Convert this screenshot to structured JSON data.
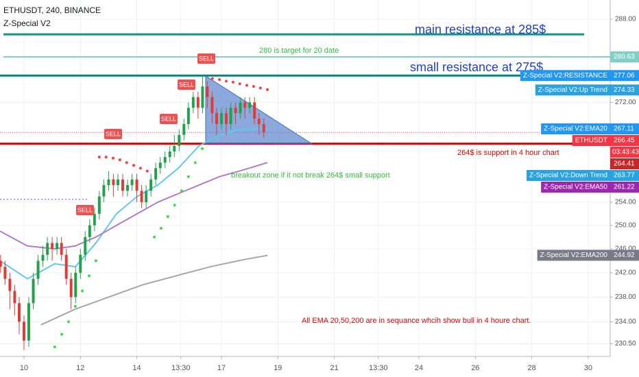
{
  "chart_data": {
    "type": "candlestick",
    "header": [
      "ETHUSDT, 240, BINANCE",
      "Z-Special V2"
    ],
    "log_scale": true,
    "grid": true,
    "xlim": [
      9.15,
      30.78
    ],
    "ylim": [
      228.5,
      291.8
    ],
    "xticks": [
      10,
      12,
      14,
      {
        "value": 15.56,
        "label": "13:30"
      },
      17,
      19,
      21,
      {
        "value": 22.56,
        "label": "13:30"
      },
      24,
      26,
      28,
      30
    ],
    "yticks": [
      {
        "value": 288,
        "label": "288.00"
      },
      {
        "value": 272,
        "label": "272.00"
      },
      {
        "value": 254,
        "label": "254.00"
      },
      {
        "value": 250,
        "label": "250.00"
      },
      {
        "value": 246,
        "label": "246.00"
      },
      {
        "value": 242,
        "label": "242.00"
      },
      {
        "value": 238,
        "label": "238.00"
      },
      {
        "value": 234,
        "label": "234.00"
      },
      {
        "value": 230.5,
        "label": "230.50"
      }
    ],
    "up_color": "#1fa34a",
    "down_color": "#e53935",
    "candles": {
      "x": [
        9.17,
        9.33,
        9.5,
        9.67,
        9.83,
        10,
        10.17,
        10.33,
        10.5,
        10.67,
        10.83,
        11,
        11.17,
        11.33,
        11.5,
        11.67,
        11.83,
        12,
        12.17,
        12.33,
        12.5,
        12.67,
        12.83,
        13,
        13.17,
        13.33,
        13.5,
        13.67,
        13.83,
        14,
        14.17,
        14.33,
        14.5,
        14.67,
        14.83,
        15,
        15.17,
        15.33,
        15.5,
        15.67,
        15.83,
        16,
        16.17,
        16.33,
        16.5,
        16.67,
        16.83,
        17,
        17.17,
        17.33,
        17.5,
        17.67,
        17.83,
        18,
        18.17,
        18.33,
        18.5
      ],
      "open": [
        244,
        243,
        241,
        239,
        237,
        234,
        231,
        237,
        241,
        244,
        245,
        247,
        246,
        247,
        245,
        241,
        238,
        242,
        245,
        248,
        250,
        252,
        255,
        257,
        258,
        257,
        258,
        256,
        257,
        258,
        256,
        254,
        256,
        258,
        260,
        261,
        262,
        263,
        264,
        266,
        268,
        271,
        273,
        271,
        275,
        273,
        270,
        268,
        270,
        268,
        271,
        270,
        272,
        271,
        272,
        269,
        268
      ],
      "high": [
        245,
        244,
        242,
        240,
        238,
        235,
        238,
        242,
        245,
        246.5,
        248,
        248,
        248,
        248,
        246,
        242,
        243,
        246,
        249,
        251,
        253,
        256,
        258,
        259.5,
        259,
        259,
        259,
        258,
        259,
        259,
        257,
        257,
        259,
        261,
        262,
        263,
        264,
        266,
        267,
        269,
        272,
        274,
        274,
        277,
        276,
        274,
        271,
        271,
        271,
        272,
        272,
        273,
        273,
        273,
        273,
        270,
        269
      ],
      "low": [
        242,
        240,
        236,
        235,
        232,
        229.5,
        230,
        236,
        240,
        243,
        244,
        244,
        245,
        244,
        240,
        236,
        237,
        241,
        244,
        247,
        249,
        251,
        254,
        256,
        255,
        256,
        255,
        255,
        256,
        254,
        253,
        253,
        255,
        257,
        259,
        260,
        261,
        262,
        263,
        265,
        267,
        270,
        269,
        270,
        271,
        268,
        266,
        267,
        266,
        267,
        268,
        269,
        269,
        270,
        268,
        266,
        265.5
      ],
      "close": [
        243,
        241,
        239,
        237,
        234,
        231,
        237,
        241,
        244,
        245,
        247,
        246,
        247,
        245,
        241,
        238,
        242,
        245,
        248,
        250,
        252,
        255,
        257,
        258,
        257,
        258,
        256,
        257,
        258,
        256,
        254,
        256,
        258,
        260,
        261,
        262,
        263,
        264,
        266,
        268,
        271,
        273,
        271,
        275,
        273,
        270,
        268,
        270,
        268,
        271,
        270,
        272,
        271,
        272,
        269,
        268,
        266.5
      ]
    },
    "ema": [
      {
        "color": "#5ec8f0",
        "x": [
          9.15,
          10.12,
          11.09,
          11.82,
          12.55,
          13.28,
          14.01,
          14.74,
          15.47,
          16.2,
          16.93,
          17.65,
          18.63
        ],
        "values": [
          244,
          241,
          243.5,
          243,
          247,
          252,
          255,
          257,
          260,
          264,
          266,
          267,
          267.1
        ]
      },
      {
        "color": "#b07cc6",
        "x": [
          9.15,
          10.12,
          11.09,
          11.82,
          12.55,
          13.28,
          14.01,
          14.74,
          15.47,
          16.2,
          16.93,
          17.65,
          18.63
        ],
        "values": [
          249,
          246.5,
          246,
          246.5,
          248,
          250,
          252,
          254,
          255.5,
          257,
          258.5,
          259.5,
          261
        ]
      },
      {
        "color": "#a8a3b3",
        "x": [
          10.6,
          11.8,
          13,
          14.2,
          15.4,
          16.6,
          17.8,
          18.63
        ],
        "values": [
          233.5,
          236,
          238,
          240,
          241.5,
          243,
          244.2,
          244.9
        ]
      }
    ],
    "sar": [
      {
        "color": "#3ddc44",
        "x": [
          11.09,
          11.34,
          11.58,
          11.82,
          12.07,
          12.31,
          12.55,
          14.62,
          14.86,
          15.1,
          15.34,
          15.59,
          15.83,
          16.07,
          16.32
        ],
        "values": [
          230,
          232,
          234,
          236.5,
          239,
          241.5,
          244,
          248,
          249.5,
          251.5,
          253.5,
          256,
          258.5,
          261,
          263.5
        ]
      },
      {
        "color": "#ff3b3b",
        "x": [
          12.67,
          12.91,
          13.16,
          13.4,
          13.64,
          13.89,
          14.13,
          14.37,
          16.68,
          16.93,
          17.17,
          17.41,
          17.65,
          17.9,
          18.14,
          18.38,
          18.63
        ],
        "values": [
          262,
          262,
          261.8,
          261.5,
          261,
          260.5,
          260,
          259.5,
          276.5,
          276.3,
          276,
          275.8,
          275.5,
          275.2,
          275,
          274.7,
          274.4
        ]
      }
    ],
    "levels": [
      {
        "value": 285,
        "color": "#089981"
      },
      {
        "value": 280.63,
        "color": "#80d0c8"
      },
      {
        "value": 277.06,
        "color": "#00897b"
      },
      {
        "value": 264.41,
        "color": "#e00000"
      },
      {
        "value": 266.45,
        "color": "#f23645",
        "dashed": true
      },
      {
        "value": 254.5,
        "color": "#2962ff",
        "dashed": true
      }
    ],
    "triangle": {
      "x": [
        16.44,
        20.2,
        16.44
      ],
      "y": [
        277,
        264.41,
        264.41
      ],
      "color": "#3f6fc7"
    },
    "signals": [
      "SELL",
      "SELL",
      "SELL",
      "SELL",
      "SELL"
    ],
    "annotations": [
      "main resistance at 285$",
      "280 is target for 20 date",
      "small resistance at 275$",
      "264$ is support in 4 hour chart",
      "breakout zone if it not break 264$ small support",
      "All EMA 20,50,200 are in sequance  whcih show bull in 4 houre chart."
    ],
    "price_labels": [
      {
        "value": 280.63,
        "color": "#80d0c8"
      },
      {
        "name": "Z-Special V2:RESISTANCE",
        "value": 277.06,
        "color": "#2196f3"
      },
      {
        "name": "Z-Special V2:Up Trend",
        "value": 274.33,
        "color": "#29a3e0"
      },
      {
        "name": "Z-Special V2:EMA20",
        "value": 267.11,
        "color": "#2196f3"
      },
      {
        "name": "ETHUSDT",
        "value": 266.45,
        "color": "#f23645",
        "countdown": "03:43:43"
      },
      {
        "value": 264.41,
        "color": "#c62828"
      },
      {
        "name": "Z-Special V2:Down Trend",
        "value": 263.77,
        "color": "#29a3e0"
      },
      {
        "name": "Z-Special V2:EMA50",
        "value": 261.22,
        "color": "#9c27b0"
      },
      {
        "name": "Z-Special V2:EMA200",
        "value": 244.92,
        "color": "#787b86"
      }
    ]
  }
}
